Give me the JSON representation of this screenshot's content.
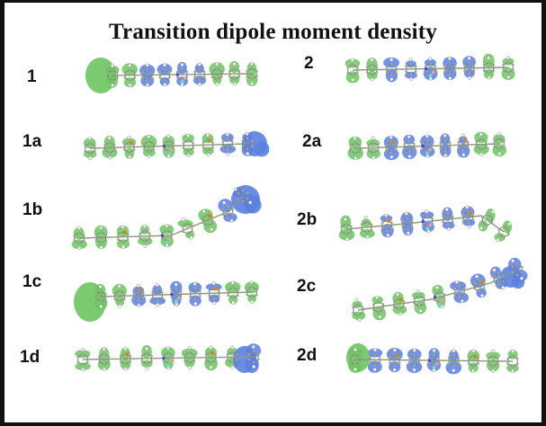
{
  "figure": {
    "title": "Transition dipole moment density",
    "panels": [
      {
        "label": "1"
      },
      {
        "label": "1a"
      },
      {
        "label": "1b"
      },
      {
        "label": "1c"
      },
      {
        "label": "1d"
      },
      {
        "label": "2"
      },
      {
        "label": "2a"
      },
      {
        "label": "2b"
      },
      {
        "label": "2c"
      },
      {
        "label": "2d"
      }
    ]
  },
  "colors": {
    "positive_lobe": "#6bc55f",
    "negative_lobe": "#5b7fe0",
    "carbon": "#a0a0a0",
    "hydrogen": "#f2f2f2",
    "nitrogen": "#4a4ad0",
    "sulfur": "#c98a2a",
    "fluorine": "#6fd6d6",
    "boron": "#e8a0a0",
    "frame": "#111111"
  }
}
